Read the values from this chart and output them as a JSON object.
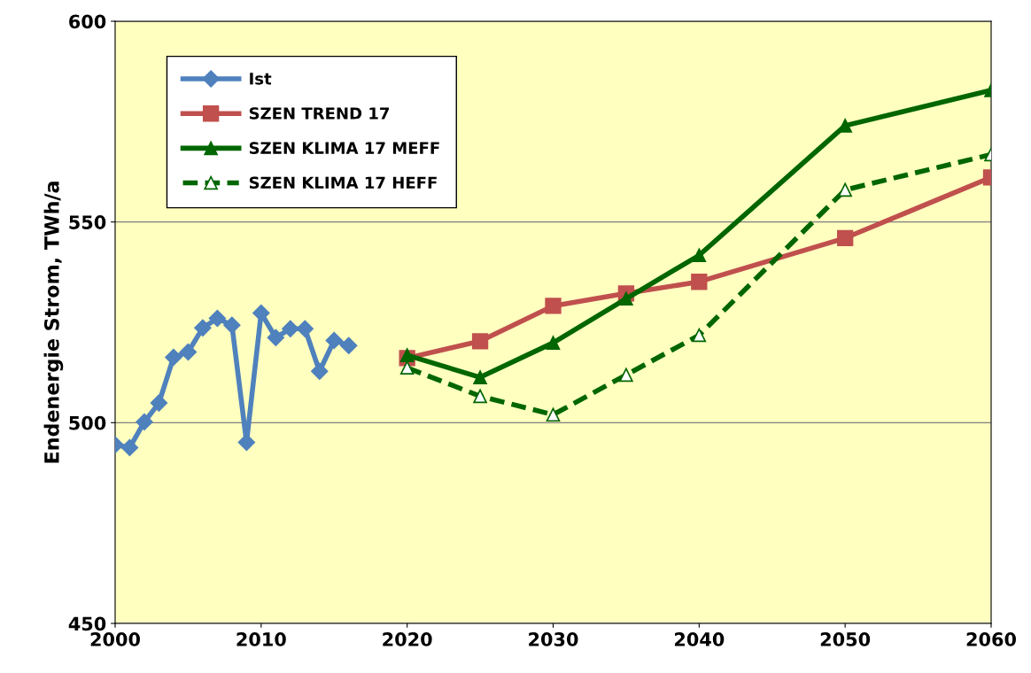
{
  "chart_data": {
    "type": "line",
    "ylabel": "Endenergie Strom, TWh/a",
    "xlim": [
      2000,
      2060
    ],
    "xticks": [
      2000,
      2010,
      2020,
      2030,
      2040,
      2050,
      2060
    ],
    "ylim": [
      450,
      600
    ],
    "yticks": [
      450,
      500,
      550,
      600
    ],
    "grid": "y",
    "legend": "top left",
    "series": [
      {
        "name": "Ist",
        "color": "#4f81bd",
        "marker": "diamond",
        "line_style": "solid",
        "x": [
          2000,
          2001,
          2002,
          2003,
          2004,
          2005,
          2006,
          2007,
          2008,
          2009,
          2010,
          2011,
          2012,
          2013,
          2014,
          2015,
          2016
        ],
        "values": [
          494.5,
          493.8,
          500.2,
          504.9,
          516.3,
          517.6,
          523.6,
          526,
          524.3,
          495.1,
          527.3,
          521.2,
          523.4,
          523.4,
          512.8,
          520.5,
          519.2
        ]
      },
      {
        "name": "SZEN TREND 17",
        "color": "#c0504d",
        "marker": "square",
        "line_style": "solid",
        "x": [
          2020,
          2025,
          2030,
          2035,
          2040,
          2050,
          2060
        ],
        "values": [
          516.1,
          520.3,
          529.1,
          532.2,
          535.1,
          546,
          561.1
        ]
      },
      {
        "name": "SZEN KLIMA 17 MEFF",
        "color": "#006600",
        "marker": "triangle",
        "line_style": "solid",
        "x": [
          2020,
          2025,
          2030,
          2035,
          2040,
          2050,
          2060
        ],
        "values": [
          516.8,
          511.3,
          519.9,
          530.9,
          541.7,
          574,
          582.8
        ]
      },
      {
        "name": "SZEN KLIMA 17 HEFF",
        "color": "#006600",
        "marker": "triangle",
        "line_style": "dashed",
        "x": [
          2020,
          2025,
          2030,
          2035,
          2040,
          2050,
          2060
        ],
        "values": [
          513.7,
          506.6,
          502,
          511.9,
          521.8,
          558,
          566.8
        ]
      }
    ]
  }
}
